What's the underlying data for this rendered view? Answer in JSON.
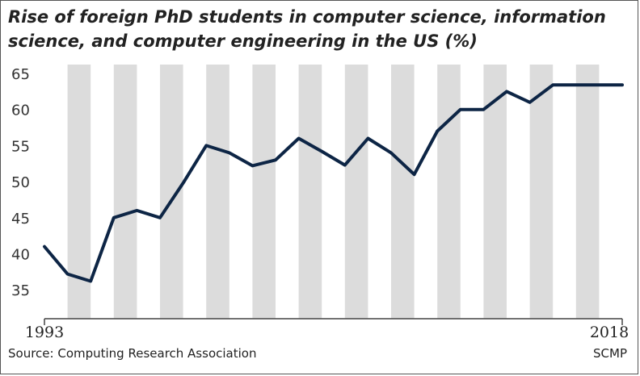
{
  "chart_data": {
    "type": "line",
    "title": "Rise of foreign PhD students in computer science, information science, and computer engineering in the US (%)",
    "xlabel": "",
    "ylabel": "",
    "x": [
      1993,
      1994,
      1995,
      1996,
      1997,
      1998,
      1999,
      2000,
      2001,
      2002,
      2003,
      2004,
      2005,
      2006,
      2007,
      2008,
      2009,
      2010,
      2011,
      2012,
      2013,
      2014,
      2015,
      2016,
      2017,
      2018
    ],
    "x_tick_labels": [
      "1993",
      "2018"
    ],
    "ylim": [
      31,
      65
    ],
    "y_ticks": [
      35,
      40,
      45,
      50,
      55,
      60,
      65
    ],
    "series": [
      {
        "name": "Foreign PhD students (%)",
        "color": "#0d2545",
        "values": [
          41.0,
          37.2,
          36.2,
          45.0,
          46.0,
          45.0,
          49.8,
          55.0,
          54.0,
          52.2,
          53.0,
          56.0,
          54.2,
          52.3,
          56.0,
          54.0,
          51.0,
          57.0,
          60.0,
          60.0,
          62.5,
          61.0,
          63.4,
          63.4,
          63.4,
          63.4
        ]
      }
    ],
    "grid": "alternating vertical bands",
    "band_color": "#dcdcdc"
  },
  "footer": {
    "source": "Source: Computing Research Association",
    "credit": "SCMP"
  }
}
